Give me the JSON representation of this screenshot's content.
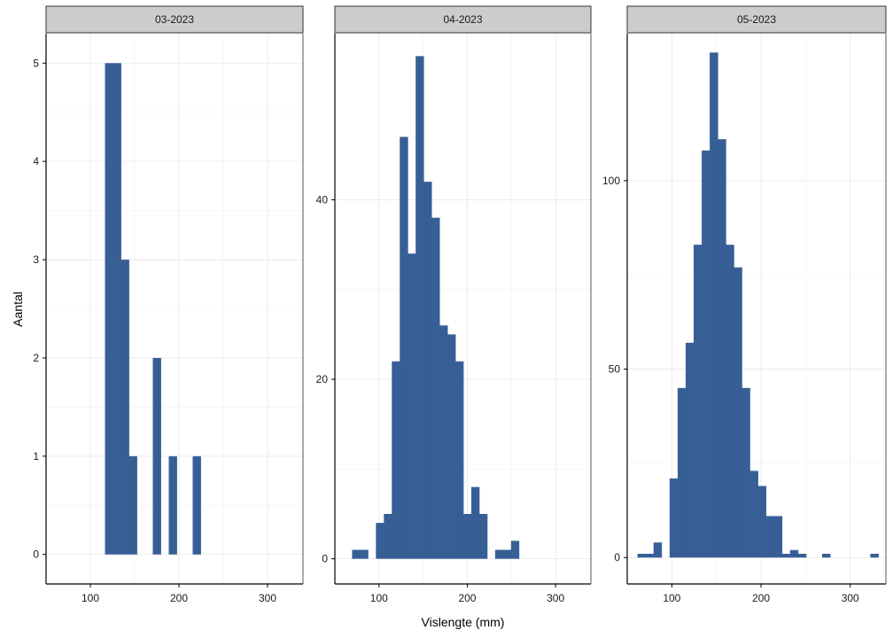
{
  "colors": {
    "bar": "#375f96",
    "strip_fill": "#cccccc",
    "grid": "#e6e6e6",
    "axis": "#000000"
  },
  "chart_data": {
    "type": "bar",
    "subtype": "faceted-histogram",
    "xlabel": "Vislengte (mm)",
    "ylabel": "Aantal",
    "xlim": [
      50,
      340
    ],
    "x_ticks": [
      100,
      200,
      300
    ],
    "bin_width": 9,
    "facets": [
      {
        "title": "03-2023",
        "ylim": [
          -0.3,
          5.3
        ],
        "y_ticks": [
          0,
          1,
          2,
          3,
          4,
          5
        ],
        "bins": [
          {
            "x": 121,
            "count": 5
          },
          {
            "x": 130,
            "count": 5
          },
          {
            "x": 139,
            "count": 3
          },
          {
            "x": 148,
            "count": 1
          },
          {
            "x": 175,
            "count": 2
          },
          {
            "x": 193,
            "count": 1
          },
          {
            "x": 220,
            "count": 1
          }
        ]
      },
      {
        "title": "04-2023",
        "ylim": [
          -2.8,
          58.5
        ],
        "y_ticks": [
          0,
          20,
          40
        ],
        "bins": [
          {
            "x": 74,
            "count": 1
          },
          {
            "x": 83,
            "count": 1
          },
          {
            "x": 101,
            "count": 4
          },
          {
            "x": 110,
            "count": 5
          },
          {
            "x": 119,
            "count": 22
          },
          {
            "x": 128,
            "count": 47
          },
          {
            "x": 137,
            "count": 34
          },
          {
            "x": 146,
            "count": 56
          },
          {
            "x": 155,
            "count": 42
          },
          {
            "x": 164,
            "count": 38
          },
          {
            "x": 173,
            "count": 26
          },
          {
            "x": 182,
            "count": 25
          },
          {
            "x": 191,
            "count": 22
          },
          {
            "x": 200,
            "count": 5
          },
          {
            "x": 209,
            "count": 8
          },
          {
            "x": 218,
            "count": 5
          },
          {
            "x": 236,
            "count": 1
          },
          {
            "x": 245,
            "count": 1
          },
          {
            "x": 254,
            "count": 2
          }
        ]
      },
      {
        "title": "05-2023",
        "ylim": [
          -7,
          139
        ],
        "y_ticks": [
          0,
          50,
          100
        ],
        "bins": [
          {
            "x": 66,
            "count": 1
          },
          {
            "x": 75,
            "count": 1
          },
          {
            "x": 84,
            "count": 4
          },
          {
            "x": 102,
            "count": 21
          },
          {
            "x": 111,
            "count": 45
          },
          {
            "x": 120,
            "count": 57
          },
          {
            "x": 129,
            "count": 83
          },
          {
            "x": 138,
            "count": 108
          },
          {
            "x": 147,
            "count": 134
          },
          {
            "x": 156,
            "count": 111
          },
          {
            "x": 165,
            "count": 83
          },
          {
            "x": 174,
            "count": 77
          },
          {
            "x": 183,
            "count": 45
          },
          {
            "x": 192,
            "count": 23
          },
          {
            "x": 201,
            "count": 19
          },
          {
            "x": 210,
            "count": 11
          },
          {
            "x": 219,
            "count": 11
          },
          {
            "x": 228,
            "count": 1
          },
          {
            "x": 237,
            "count": 2
          },
          {
            "x": 246,
            "count": 1
          },
          {
            "x": 273,
            "count": 1
          },
          {
            "x": 327,
            "count": 1
          }
        ]
      }
    ]
  }
}
